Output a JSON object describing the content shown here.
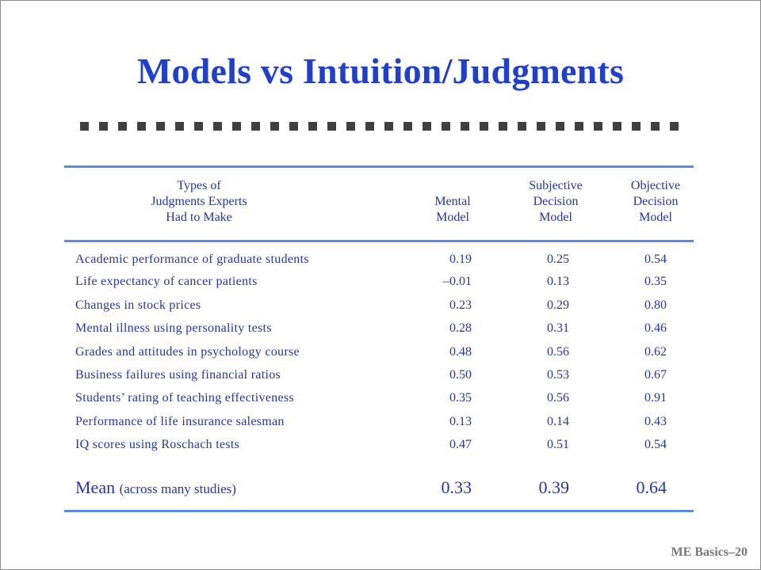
{
  "title": "Models vs Intuition/Judgments",
  "headers": {
    "types": [
      "Types of",
      "Judgments Experts",
      "Had to Make"
    ],
    "mental": [
      "Mental",
      "Model"
    ],
    "subjective": [
      "Subjective",
      "Decision",
      "Model"
    ],
    "objective": [
      "Objective",
      "Decision",
      "Model"
    ]
  },
  "rows": [
    {
      "label": "Academic performance of graduate students",
      "mental": "0.19",
      "subjective": "0.25",
      "objective": "0.54"
    },
    {
      "label": "Life expectancy of cancer patients",
      "mental": "–0.01",
      "subjective": "0.13",
      "objective": "0.35"
    },
    {
      "label": "Changes in stock prices",
      "mental": "0.23",
      "subjective": "0.29",
      "objective": "0.80"
    },
    {
      "label": "Mental illness using personality tests",
      "mental": "0.28",
      "subjective": "0.31",
      "objective": "0.46"
    },
    {
      "label": "Grades and attitudes in psychology course",
      "mental": "0.48",
      "subjective": "0.56",
      "objective": "0.62"
    },
    {
      "label": "Business failures using financial ratios",
      "mental": "0.50",
      "subjective": "0.53",
      "objective": "0.67"
    },
    {
      "label": "Students’ rating of teaching effectiveness",
      "mental": "0.35",
      "subjective": "0.56",
      "objective": "0.91"
    },
    {
      "label": "Performance of life insurance salesman",
      "mental": "0.13",
      "subjective": "0.14",
      "objective": "0.43"
    },
    {
      "label": "IQ scores using Roschach tests",
      "mental": "0.47",
      "subjective": "0.51",
      "objective": "0.54"
    }
  ],
  "mean": {
    "label": "Mean",
    "note": "(across many studies)",
    "mental": "0.33",
    "subjective": "0.39",
    "objective": "0.64"
  },
  "footer": "ME Basics–20",
  "colors": {
    "title": "#1f3fd1",
    "text": "#2236b0",
    "rule": "#5d8ae8",
    "dots": "#3f3f3f"
  }
}
